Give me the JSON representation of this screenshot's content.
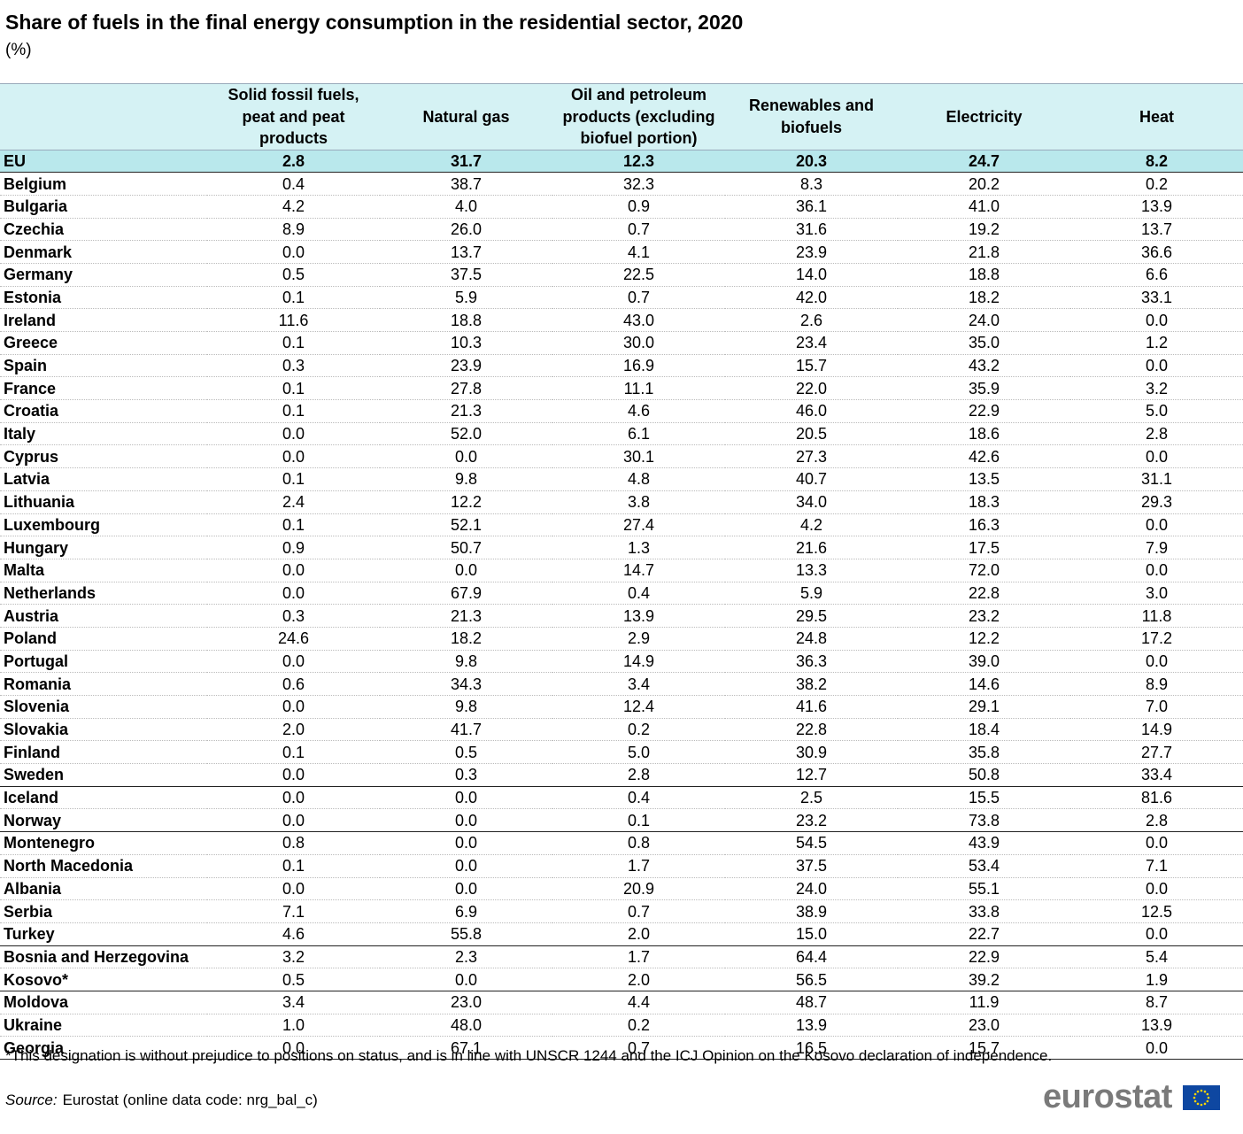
{
  "header": {
    "title": "Share of fuels in the final energy consumption in the residential sector, 2020",
    "subtitle": "(%)"
  },
  "table": {
    "columns": [
      "Solid fossil fuels, peat and peat products",
      "Natural gas",
      "Oil and petroleum products (excluding biofuel portion)",
      "Renewables and biofuels",
      "Electricity",
      "Heat"
    ],
    "groups": [
      [
        [
          "EU",
          "2.8",
          "31.7",
          "12.3",
          "20.3",
          "24.7",
          "8.2"
        ]
      ],
      [
        [
          "Belgium",
          "0.4",
          "38.7",
          "32.3",
          "8.3",
          "20.2",
          "0.2"
        ],
        [
          "Bulgaria",
          "4.2",
          "4.0",
          "0.9",
          "36.1",
          "41.0",
          "13.9"
        ],
        [
          "Czechia",
          "8.9",
          "26.0",
          "0.7",
          "31.6",
          "19.2",
          "13.7"
        ],
        [
          "Denmark",
          "0.0",
          "13.7",
          "4.1",
          "23.9",
          "21.8",
          "36.6"
        ],
        [
          "Germany",
          "0.5",
          "37.5",
          "22.5",
          "14.0",
          "18.8",
          "6.6"
        ],
        [
          "Estonia",
          "0.1",
          "5.9",
          "0.7",
          "42.0",
          "18.2",
          "33.1"
        ],
        [
          "Ireland",
          "11.6",
          "18.8",
          "43.0",
          "2.6",
          "24.0",
          "0.0"
        ],
        [
          "Greece",
          "0.1",
          "10.3",
          "30.0",
          "23.4",
          "35.0",
          "1.2"
        ],
        [
          "Spain",
          "0.3",
          "23.9",
          "16.9",
          "15.7",
          "43.2",
          "0.0"
        ],
        [
          "France",
          "0.1",
          "27.8",
          "11.1",
          "22.0",
          "35.9",
          "3.2"
        ],
        [
          "Croatia",
          "0.1",
          "21.3",
          "4.6",
          "46.0",
          "22.9",
          "5.0"
        ],
        [
          "Italy",
          "0.0",
          "52.0",
          "6.1",
          "20.5",
          "18.6",
          "2.8"
        ],
        [
          "Cyprus",
          "0.0",
          "0.0",
          "30.1",
          "27.3",
          "42.6",
          "0.0"
        ],
        [
          "Latvia",
          "0.1",
          "9.8",
          "4.8",
          "40.7",
          "13.5",
          "31.1"
        ],
        [
          "Lithuania",
          "2.4",
          "12.2",
          "3.8",
          "34.0",
          "18.3",
          "29.3"
        ],
        [
          "Luxembourg",
          "0.1",
          "52.1",
          "27.4",
          "4.2",
          "16.3",
          "0.0"
        ],
        [
          "Hungary",
          "0.9",
          "50.7",
          "1.3",
          "21.6",
          "17.5",
          "7.9"
        ],
        [
          "Malta",
          "0.0",
          "0.0",
          "14.7",
          "13.3",
          "72.0",
          "0.0"
        ],
        [
          "Netherlands",
          "0.0",
          "67.9",
          "0.4",
          "5.9",
          "22.8",
          "3.0"
        ],
        [
          "Austria",
          "0.3",
          "21.3",
          "13.9",
          "29.5",
          "23.2",
          "11.8"
        ],
        [
          "Poland",
          "24.6",
          "18.2",
          "2.9",
          "24.8",
          "12.2",
          "17.2"
        ],
        [
          "Portugal",
          "0.0",
          "9.8",
          "14.9",
          "36.3",
          "39.0",
          "0.0"
        ],
        [
          "Romania",
          "0.6",
          "34.3",
          "3.4",
          "38.2",
          "14.6",
          "8.9"
        ],
        [
          "Slovenia",
          "0.0",
          "9.8",
          "12.4",
          "41.6",
          "29.1",
          "7.0"
        ],
        [
          "Slovakia",
          "2.0",
          "41.7",
          "0.2",
          "22.8",
          "18.4",
          "14.9"
        ],
        [
          "Finland",
          "0.1",
          "0.5",
          "5.0",
          "30.9",
          "35.8",
          "27.7"
        ],
        [
          "Sweden",
          "0.0",
          "0.3",
          "2.8",
          "12.7",
          "50.8",
          "33.4"
        ]
      ],
      [
        [
          "Iceland",
          "0.0",
          "0.0",
          "0.4",
          "2.5",
          "15.5",
          "81.6"
        ],
        [
          "Norway",
          "0.0",
          "0.0",
          "0.1",
          "23.2",
          "73.8",
          "2.8"
        ]
      ],
      [
        [
          "Montenegro",
          "0.8",
          "0.0",
          "0.8",
          "54.5",
          "43.9",
          "0.0"
        ],
        [
          "North Macedonia",
          "0.1",
          "0.0",
          "1.7",
          "37.5",
          "53.4",
          "7.1"
        ],
        [
          "Albania",
          "0.0",
          "0.0",
          "20.9",
          "24.0",
          "55.1",
          "0.0"
        ],
        [
          "Serbia",
          "7.1",
          "6.9",
          "0.7",
          "38.9",
          "33.8",
          "12.5"
        ],
        [
          "Turkey",
          "4.6",
          "55.8",
          "2.0",
          "15.0",
          "22.7",
          "0.0"
        ]
      ],
      [
        [
          "Bosnia and Herzegovina",
          "3.2",
          "2.3",
          "1.7",
          "64.4",
          "22.9",
          "5.4"
        ],
        [
          "Kosovo*",
          "0.5",
          "0.0",
          "2.0",
          "56.5",
          "39.2",
          "1.9"
        ]
      ],
      [
        [
          "Moldova",
          "3.4",
          "23.0",
          "4.4",
          "48.7",
          "11.9",
          "8.7"
        ],
        [
          "Ukraine",
          "1.0",
          "48.0",
          "0.2",
          "13.9",
          "23.0",
          "13.9"
        ],
        [
          "Georgia",
          "0.0",
          "67.1",
          "0.7",
          "16.5",
          "15.7",
          "0.0"
        ]
      ]
    ]
  },
  "footnote": "*This designation is without prejudice to positions on status, and is in line with UNSCR 1244 and the ICJ Opinion on the Kosovo declaration of independence.",
  "source": {
    "label": "Source:",
    "text": "Eurostat (online data code:  nrg_bal_c)"
  },
  "logo": "eurostat"
}
